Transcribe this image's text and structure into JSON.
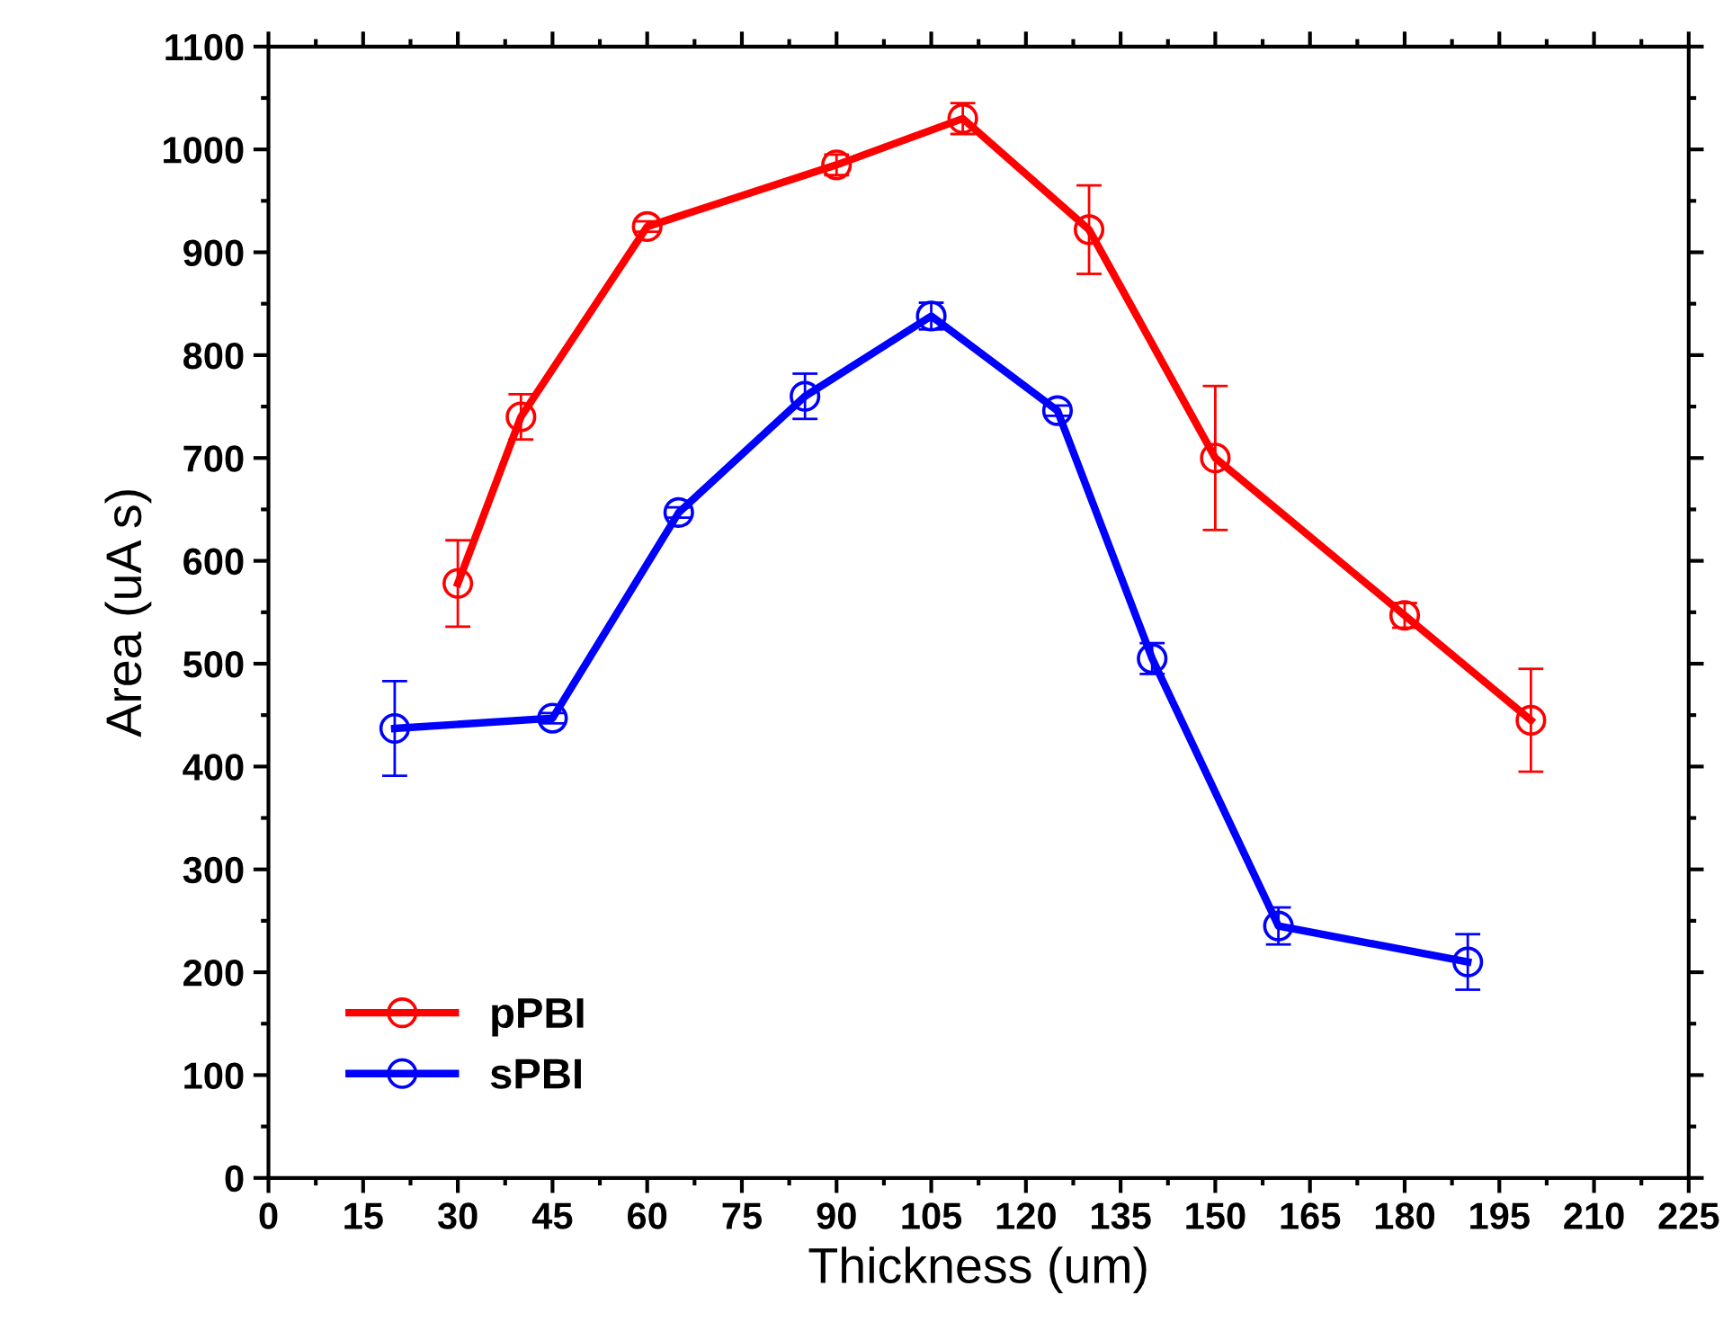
{
  "chart_data": {
    "type": "line",
    "xlabel": "Thickness (um)",
    "ylabel": "Area (uA s)",
    "xlim": [
      0,
      225
    ],
    "xticks": [
      0,
      15,
      30,
      45,
      60,
      75,
      90,
      105,
      120,
      135,
      150,
      165,
      180,
      195,
      210,
      225
    ],
    "ylim": [
      0,
      1100
    ],
    "yticks": [
      0,
      100,
      200,
      300,
      400,
      500,
      600,
      700,
      800,
      900,
      1000,
      1100
    ],
    "marker": "circle",
    "line_style": "solid",
    "grid": false,
    "legend": "bottom left",
    "series": [
      {
        "name": "pPBI",
        "color": "#ff0000",
        "x": [
          30,
          40,
          60,
          90,
          110,
          130,
          150,
          180,
          200
        ],
        "values": [
          578,
          740,
          925,
          985,
          1030,
          922,
          700,
          547,
          445
        ],
        "errors": [
          42,
          22,
          5,
          10,
          15,
          43,
          70,
          12,
          50
        ]
      },
      {
        "name": "sPBI",
        "color": "#0000ff",
        "x": [
          20,
          45,
          65,
          85,
          105,
          125,
          140,
          160,
          190
        ],
        "values": [
          437,
          447,
          647,
          760,
          838,
          746,
          505,
          245,
          210
        ],
        "errors": [
          46,
          5,
          5,
          22,
          13,
          5,
          15,
          18,
          27
        ]
      }
    ]
  }
}
